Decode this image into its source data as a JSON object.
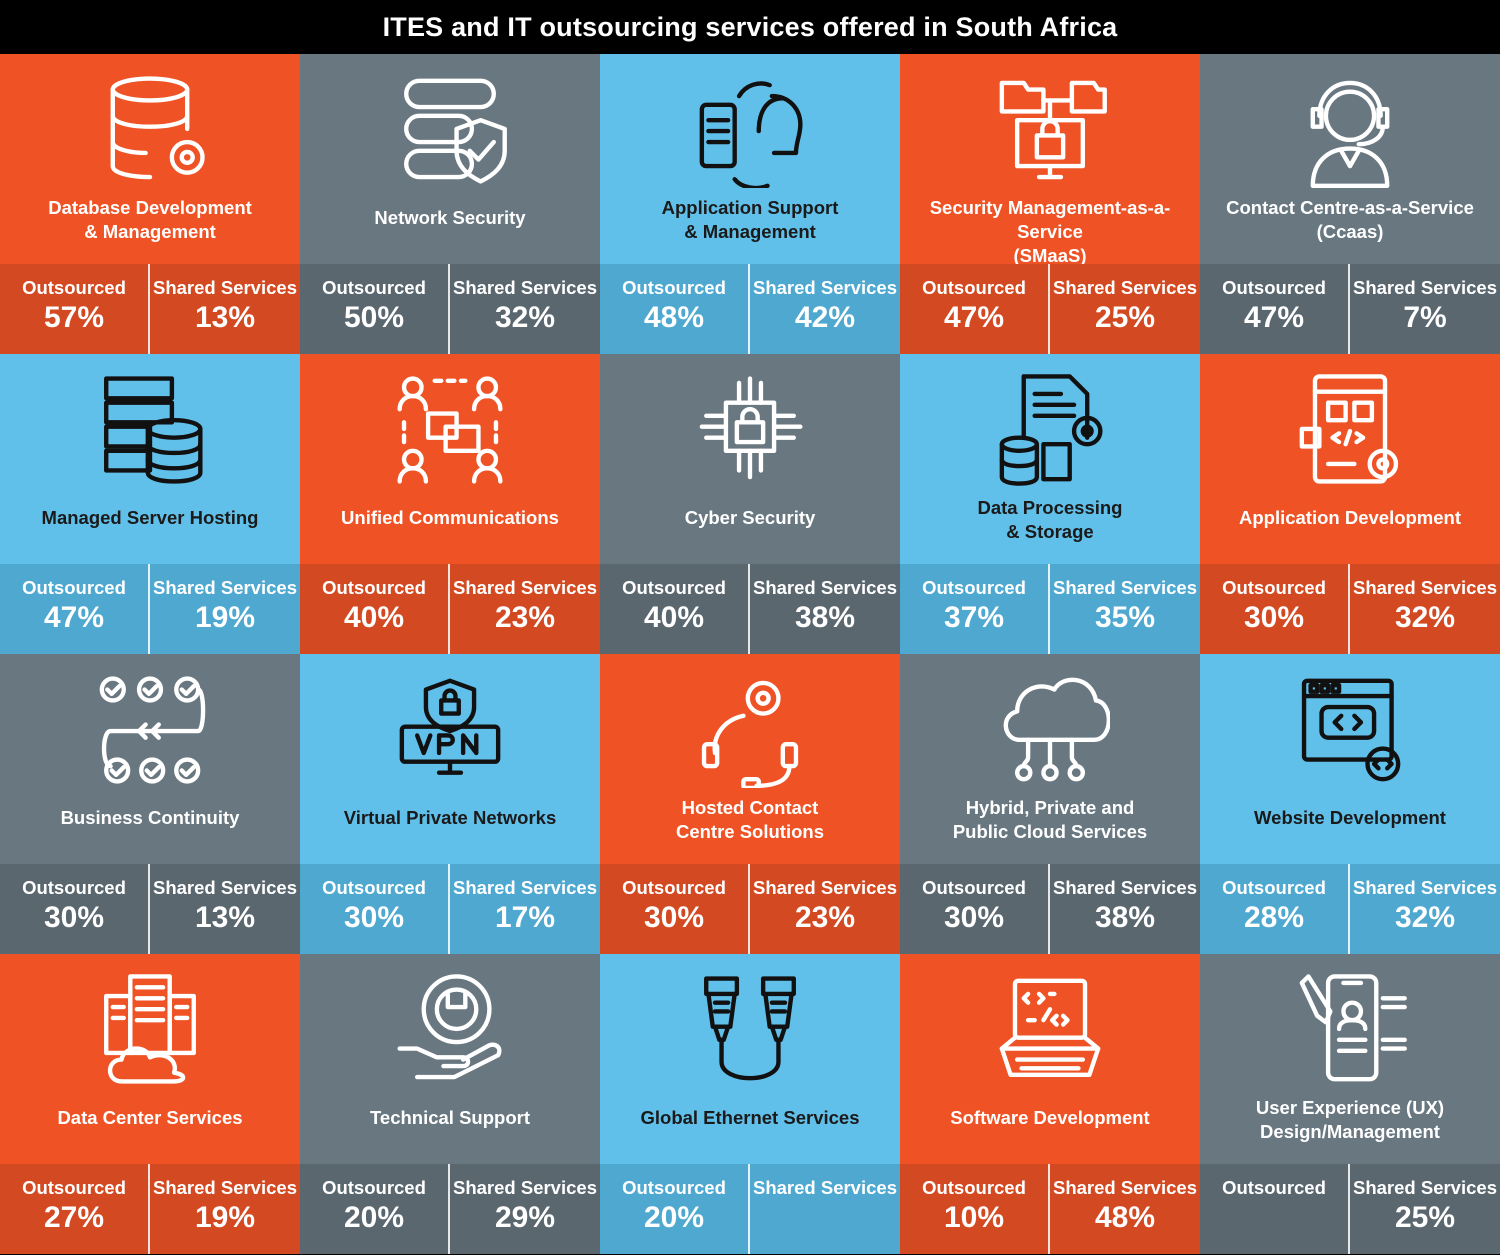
{
  "title": "ITES and IT outsourcing services offered in South Africa",
  "outsourced_label": "Outsourced",
  "shared_label": "Shared Services",
  "colors": {
    "orange": "#ef5224",
    "gray": "#687780",
    "blue": "#61c0ea"
  },
  "tiles": [
    {
      "label": "Database Development\n& Management",
      "outsourced": "57%",
      "shared": "13%",
      "color": "orange",
      "icon": "database-gear-icon"
    },
    {
      "label": "Network Security",
      "outsourced": "50%",
      "shared": "32%",
      "color": "gray",
      "icon": "server-shield-icon"
    },
    {
      "label": "Application Support\n& Management",
      "outsourced": "48%",
      "shared": "42%",
      "color": "blue",
      "icon": "phone-headset-support-icon"
    },
    {
      "label": "Security Management-as-a-Service\n(SMaaS)",
      "outsourced": "47%",
      "shared": "25%",
      "color": "orange",
      "icon": "monitor-lock-icon"
    },
    {
      "label": "Contact Centre-as-a-Service\n(Ccaas)",
      "outsourced": "47%",
      "shared": "7%",
      "color": "gray",
      "icon": "call-agent-icon"
    },
    {
      "label": "Managed Server Hosting",
      "outsourced": "47%",
      "shared": "19%",
      "color": "blue",
      "icon": "server-rack-database-icon"
    },
    {
      "label": "Unified Communications",
      "outsourced": "40%",
      "shared": "23%",
      "color": "orange",
      "icon": "group-chat-icon"
    },
    {
      "label": "Cyber Security",
      "outsourced": "40%",
      "shared": "38%",
      "color": "gray",
      "icon": "chip-lock-icon"
    },
    {
      "label": "Data Processing\n& Storage",
      "outsourced": "37%",
      "shared": "35%",
      "color": "blue",
      "icon": "document-storage-gear-icon"
    },
    {
      "label": "Application Development",
      "outsourced": "30%",
      "shared": "32%",
      "color": "orange",
      "icon": "app-code-icon"
    },
    {
      "label": "Business Continuity",
      "outsourced": "30%",
      "shared": "13%",
      "color": "gray",
      "icon": "process-checklist-icon"
    },
    {
      "label": "Virtual Private Networks",
      "outsourced": "30%",
      "shared": "17%",
      "color": "blue",
      "icon": "vpn-monitor-icon"
    },
    {
      "label": "Hosted Contact\nCentre Solutions",
      "outsourced": "30%",
      "shared": "23%",
      "color": "orange",
      "icon": "headset-gear-icon"
    },
    {
      "label": "Hybrid, Private and\nPublic Cloud Services",
      "outsourced": "30%",
      "shared": "38%",
      "color": "gray",
      "icon": "cloud-network-icon"
    },
    {
      "label": "Website Development",
      "outsourced": "28%",
      "shared": "32%",
      "color": "blue",
      "icon": "browser-code-icon"
    },
    {
      "label": "Data Center Services",
      "outsourced": "27%",
      "shared": "19%",
      "color": "orange",
      "icon": "datacenter-cloud-icon"
    },
    {
      "label": "Technical Support",
      "outsourced": "20%",
      "shared": "29%",
      "color": "gray",
      "icon": "hand-gear-wrench-icon"
    },
    {
      "label": "Global Ethernet Services",
      "outsourced": "20%",
      "shared": "",
      "color": "blue",
      "icon": "ethernet-cable-icon"
    },
    {
      "label": "Software Development",
      "outsourced": "10%",
      "shared": "48%",
      "color": "orange",
      "icon": "laptop-code-icon"
    },
    {
      "label": "User Experience (UX)\nDesign/Management",
      "outsourced": "",
      "shared": "25%",
      "color": "gray",
      "icon": "mobile-profile-pen-icon"
    }
  ]
}
